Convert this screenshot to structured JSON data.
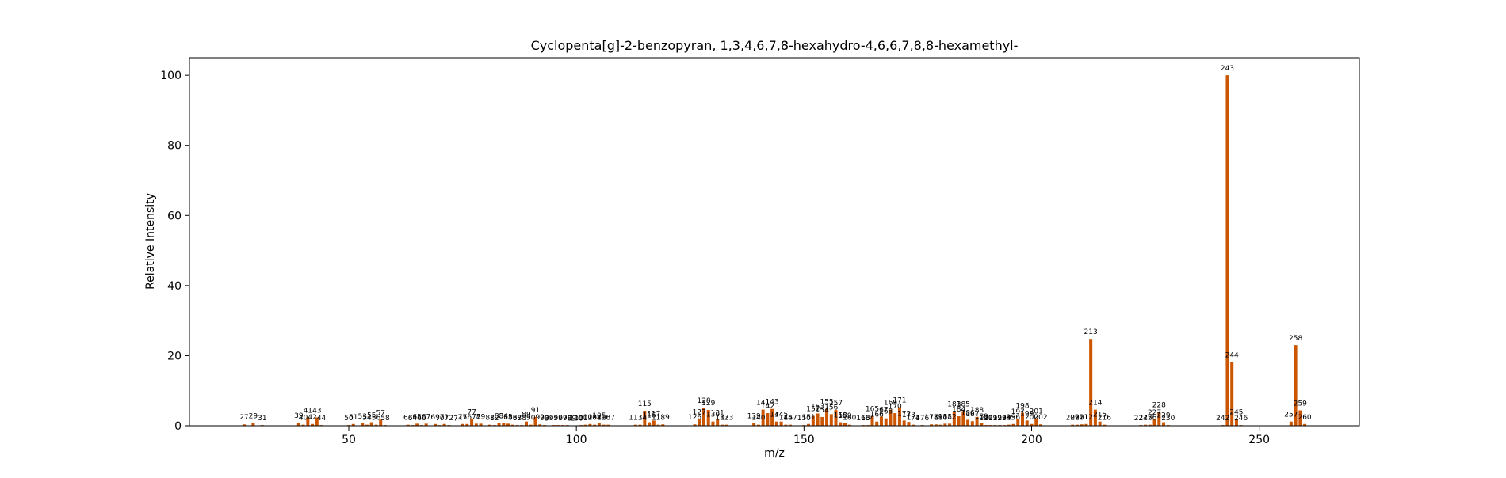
{
  "chart_data": {
    "type": "bar",
    "title": "Cyclopenta[g]-2-benzopyran, 1,3,4,6,7,8-hexahydro-4,6,6,7,8,8-hexamethyl-",
    "xlabel": "m/z",
    "ylabel": "Relative Intensity",
    "xlim": [
      15,
      272
    ],
    "ylim": [
      0,
      105
    ],
    "xticks": [
      50,
      100,
      150,
      200,
      250
    ],
    "yticks": [
      0,
      20,
      40,
      60,
      80,
      100
    ],
    "grid": false,
    "bar_color": "#cc5500",
    "peaks": [
      {
        "mz": 27,
        "intensity": 0.4
      },
      {
        "mz": 29,
        "intensity": 0.8
      },
      {
        "mz": 31,
        "intensity": 0.2
      },
      {
        "mz": 39,
        "intensity": 0.9
      },
      {
        "mz": 40,
        "intensity": 0.3
      },
      {
        "mz": 41,
        "intensity": 2.4
      },
      {
        "mz": 42,
        "intensity": 0.5
      },
      {
        "mz": 43,
        "intensity": 2.4
      },
      {
        "mz": 44,
        "intensity": 0.2
      },
      {
        "mz": 50,
        "intensity": 0.2
      },
      {
        "mz": 51,
        "intensity": 0.5
      },
      {
        "mz": 53,
        "intensity": 0.7
      },
      {
        "mz": 54,
        "intensity": 0.3
      },
      {
        "mz": 55,
        "intensity": 1.0
      },
      {
        "mz": 56,
        "intensity": 0.3
      },
      {
        "mz": 57,
        "intensity": 1.7
      },
      {
        "mz": 58,
        "intensity": 0.2
      },
      {
        "mz": 63,
        "intensity": 0.3
      },
      {
        "mz": 64,
        "intensity": 0.2
      },
      {
        "mz": 65,
        "intensity": 0.6
      },
      {
        "mz": 66,
        "intensity": 0.2
      },
      {
        "mz": 67,
        "intensity": 0.6
      },
      {
        "mz": 69,
        "intensity": 0.5
      },
      {
        "mz": 70,
        "intensity": 0.2
      },
      {
        "mz": 71,
        "intensity": 0.5
      },
      {
        "mz": 72,
        "intensity": 0.2
      },
      {
        "mz": 74,
        "intensity": 0.1
      },
      {
        "mz": 75,
        "intensity": 0.5
      },
      {
        "mz": 76,
        "intensity": 0.5
      },
      {
        "mz": 77,
        "intensity": 1.9
      },
      {
        "mz": 78,
        "intensity": 0.6
      },
      {
        "mz": 79,
        "intensity": 0.6
      },
      {
        "mz": 81,
        "intensity": 0.3
      },
      {
        "mz": 82,
        "intensity": 0.2
      },
      {
        "mz": 83,
        "intensity": 0.8
      },
      {
        "mz": 84,
        "intensity": 0.8
      },
      {
        "mz": 85,
        "intensity": 0.6
      },
      {
        "mz": 86,
        "intensity": 0.3
      },
      {
        "mz": 87,
        "intensity": 0.2
      },
      {
        "mz": 88,
        "intensity": 0.2
      },
      {
        "mz": 89,
        "intensity": 1.2
      },
      {
        "mz": 90,
        "intensity": 0.3
      },
      {
        "mz": 91,
        "intensity": 2.5
      },
      {
        "mz": 92,
        "intensity": 0.4
      },
      {
        "mz": 93,
        "intensity": 0.2
      },
      {
        "mz": 94,
        "intensity": 0.1
      },
      {
        "mz": 95,
        "intensity": 0.2
      },
      {
        "mz": 96,
        "intensity": 0.2
      },
      {
        "mz": 97,
        "intensity": 0.2
      },
      {
        "mz": 98,
        "intensity": 0.2
      },
      {
        "mz": 99,
        "intensity": 0.1
      },
      {
        "mz": 100,
        "intensity": 0.1
      },
      {
        "mz": 101,
        "intensity": 0.2
      },
      {
        "mz": 102,
        "intensity": 0.3
      },
      {
        "mz": 103,
        "intensity": 0.5
      },
      {
        "mz": 104,
        "intensity": 0.3
      },
      {
        "mz": 105,
        "intensity": 0.9
      },
      {
        "mz": 106,
        "intensity": 0.3
      },
      {
        "mz": 107,
        "intensity": 0.3
      },
      {
        "mz": 113,
        "intensity": 0.3
      },
      {
        "mz": 114,
        "intensity": 0.3
      },
      {
        "mz": 115,
        "intensity": 4.3
      },
      {
        "mz": 116,
        "intensity": 1.0
      },
      {
        "mz": 117,
        "intensity": 1.5
      },
      {
        "mz": 118,
        "intensity": 0.3
      },
      {
        "mz": 119,
        "intensity": 0.4
      },
      {
        "mz": 126,
        "intensity": 0.4
      },
      {
        "mz": 127,
        "intensity": 1.9
      },
      {
        "mz": 128,
        "intensity": 5.2
      },
      {
        "mz": 129,
        "intensity": 4.5
      },
      {
        "mz": 130,
        "intensity": 1.2
      },
      {
        "mz": 131,
        "intensity": 1.7
      },
      {
        "mz": 132,
        "intensity": 0.3
      },
      {
        "mz": 133,
        "intensity": 0.3
      },
      {
        "mz": 139,
        "intensity": 0.8
      },
      {
        "mz": 140,
        "intensity": 0.3
      },
      {
        "mz": 141,
        "intensity": 4.6
      },
      {
        "mz": 142,
        "intensity": 3.6
      },
      {
        "mz": 143,
        "intensity": 4.8
      },
      {
        "mz": 144,
        "intensity": 1.2
      },
      {
        "mz": 145,
        "intensity": 1.2
      },
      {
        "mz": 146,
        "intensity": 0.3
      },
      {
        "mz": 147,
        "intensity": 0.3
      },
      {
        "mz": 150,
        "intensity": 0.2
      },
      {
        "mz": 151,
        "intensity": 0.5
      },
      {
        "mz": 152,
        "intensity": 2.8
      },
      {
        "mz": 153,
        "intensity": 3.5
      },
      {
        "mz": 154,
        "intensity": 2.5
      },
      {
        "mz": 155,
        "intensity": 4.8
      },
      {
        "mz": 156,
        "intensity": 3.3
      },
      {
        "mz": 157,
        "intensity": 4.5
      },
      {
        "mz": 158,
        "intensity": 1.0
      },
      {
        "mz": 159,
        "intensity": 0.9
      },
      {
        "mz": 160,
        "intensity": 0.3
      },
      {
        "mz": 163,
        "intensity": 0.2
      },
      {
        "mz": 164,
        "intensity": 0.2
      },
      {
        "mz": 165,
        "intensity": 2.8
      },
      {
        "mz": 166,
        "intensity": 1.2
      },
      {
        "mz": 167,
        "intensity": 2.6
      },
      {
        "mz": 168,
        "intensity": 2.1
      },
      {
        "mz": 169,
        "intensity": 4.6
      },
      {
        "mz": 170,
        "intensity": 3.6
      },
      {
        "mz": 171,
        "intensity": 5.3
      },
      {
        "mz": 172,
        "intensity": 1.5
      },
      {
        "mz": 173,
        "intensity": 1.1
      },
      {
        "mz": 174,
        "intensity": 0.3
      },
      {
        "mz": 176,
        "intensity": 0.2
      },
      {
        "mz": 178,
        "intensity": 0.4
      },
      {
        "mz": 179,
        "intensity": 0.4
      },
      {
        "mz": 180,
        "intensity": 0.3
      },
      {
        "mz": 181,
        "intensity": 0.6
      },
      {
        "mz": 182,
        "intensity": 0.6
      },
      {
        "mz": 183,
        "intensity": 4.2
      },
      {
        "mz": 184,
        "intensity": 2.7
      },
      {
        "mz": 185,
        "intensity": 4.2
      },
      {
        "mz": 186,
        "intensity": 1.7
      },
      {
        "mz": 187,
        "intensity": 1.3
      },
      {
        "mz": 188,
        "intensity": 2.5
      },
      {
        "mz": 189,
        "intensity": 0.7
      },
      {
        "mz": 190,
        "intensity": 0.2
      },
      {
        "mz": 191,
        "intensity": 0.2
      },
      {
        "mz": 192,
        "intensity": 0.2
      },
      {
        "mz": 193,
        "intensity": 0.2
      },
      {
        "mz": 194,
        "intensity": 0.2
      },
      {
        "mz": 195,
        "intensity": 0.3
      },
      {
        "mz": 196,
        "intensity": 0.5
      },
      {
        "mz": 197,
        "intensity": 2.0
      },
      {
        "mz": 198,
        "intensity": 3.7
      },
      {
        "mz": 199,
        "intensity": 1.5
      },
      {
        "mz": 200,
        "intensity": 0.5
      },
      {
        "mz": 201,
        "intensity": 2.1
      },
      {
        "mz": 202,
        "intensity": 0.4
      },
      {
        "mz": 209,
        "intensity": 0.3
      },
      {
        "mz": 210,
        "intensity": 0.3
      },
      {
        "mz": 211,
        "intensity": 0.4
      },
      {
        "mz": 212,
        "intensity": 0.5
      },
      {
        "mz": 213,
        "intensity": 24.8
      },
      {
        "mz": 214,
        "intensity": 4.6
      },
      {
        "mz": 215,
        "intensity": 1.2
      },
      {
        "mz": 216,
        "intensity": 0.3
      },
      {
        "mz": 224,
        "intensity": 0.2
      },
      {
        "mz": 225,
        "intensity": 0.3
      },
      {
        "mz": 226,
        "intensity": 0.3
      },
      {
        "mz": 227,
        "intensity": 1.8
      },
      {
        "mz": 228,
        "intensity": 3.9
      },
      {
        "mz": 229,
        "intensity": 1.0
      },
      {
        "mz": 230,
        "intensity": 0.2
      },
      {
        "mz": 242,
        "intensity": 0.2
      },
      {
        "mz": 243,
        "intensity": 100.0
      },
      {
        "mz": 244,
        "intensity": 18.2
      },
      {
        "mz": 245,
        "intensity": 1.9
      },
      {
        "mz": 246,
        "intensity": 0.2
      },
      {
        "mz": 257,
        "intensity": 1.2
      },
      {
        "mz": 258,
        "intensity": 23.0
      },
      {
        "mz": 259,
        "intensity": 4.4
      },
      {
        "mz": 260,
        "intensity": 0.5
      }
    ]
  }
}
